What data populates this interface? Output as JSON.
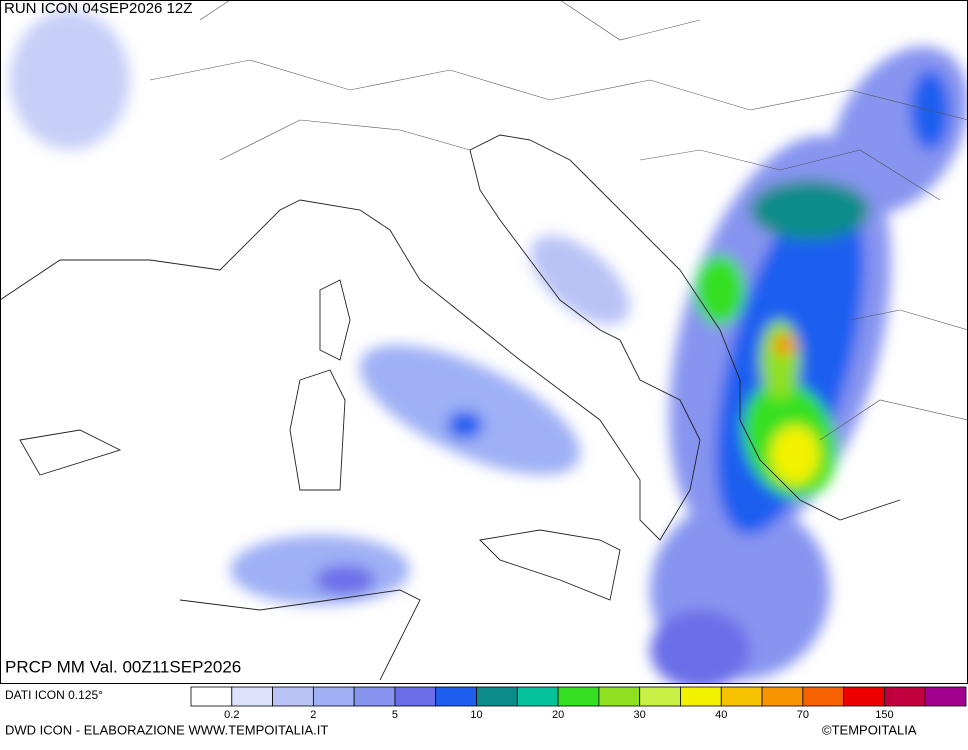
{
  "map": {
    "run_label": "RUN ICON 04SEP2026 12Z",
    "field_label": "PRCP MM Val. 00Z11SEP2026"
  },
  "footer": {
    "data_source": "DATI ICON 0.125°",
    "credit": "DWD ICON - ELABORAZIONE WWW.TEMPOITALIA.IT",
    "copyright": "©TEMPOITALIA"
  },
  "legend": {
    "colors": [
      "#ffffff",
      "#dde1fb",
      "#b9c3f6",
      "#9fb0f5",
      "#8794f0",
      "#6a6ee8",
      "#1f5ff0",
      "#0b8c8a",
      "#05c29c",
      "#35e022",
      "#8ee020",
      "#c7ef44",
      "#f2f200",
      "#f7c200",
      "#f79400",
      "#f76200",
      "#ef0000",
      "#c20040",
      "#a2008f"
    ],
    "ticks": [
      0.2,
      2,
      5,
      10,
      20,
      30,
      40,
      70,
      150
    ]
  }
}
